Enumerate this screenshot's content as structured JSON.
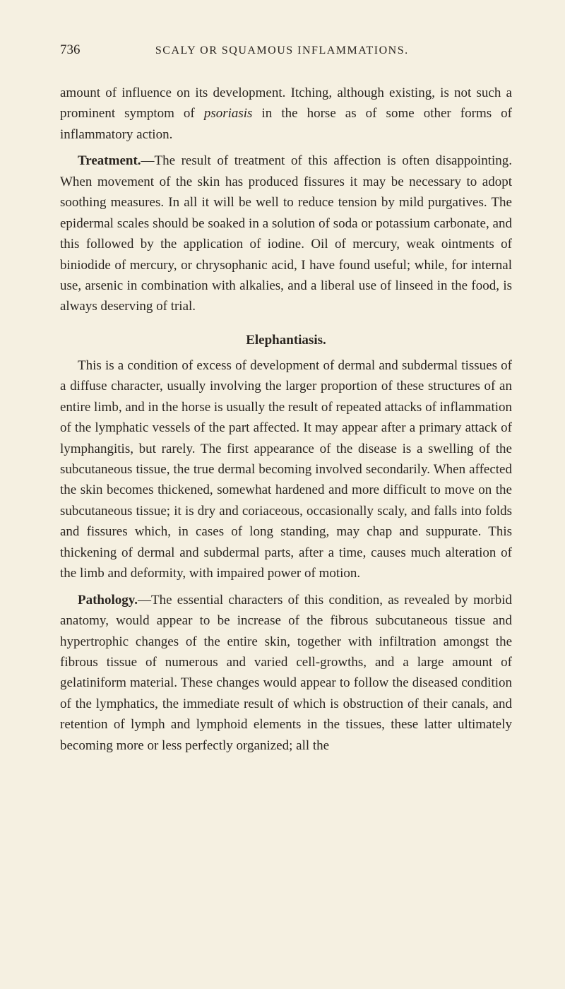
{
  "page_number": "736",
  "running_head": "SCALY OR SQUAMOUS INFLAMMATIONS.",
  "background_color": "#f5f0e1",
  "text_color": "#2a2520",
  "body_fontsize": 19,
  "line_height": 1.55,
  "paragraphs": {
    "p1_prefix": "amount of influence on its development. Itching, although existing, is not such a prominent symptom of ",
    "p1_italic": "psoriasis",
    "p1_suffix": " in the horse as of some other forms of inflammatory action.",
    "p2_lead": "Treatment.",
    "p2_body": "—The result of treatment of this affection is often disappointing. When movement of the skin has produced fissures it may be necessary to adopt soothing measures. In all it will be well to reduce tension by mild purgatives. The epidermal scales should be soaked in a solution of soda or potassium carbonate, and this followed by the application of iodine. Oil of mercury, weak ointments of biniodide of mercury, or chrysophanic acid, I have found useful; while, for internal use, arsenic in combination with alkalies, and a liberal use of linseed in the food, is always deserving of trial.",
    "heading": "Elephantiasis.",
    "p3": "This is a condition of excess of development of dermal and subdermal tissues of a diffuse character, usually involving the larger proportion of these structures of an entire limb, and in the horse is usually the result of repeated attacks of inflammation of the lymphatic vessels of the part affected. It may appear after a primary attack of lymphangitis, but rarely. The first appearance of the disease is a swelling of the subcutaneous tissue, the true dermal becoming involved secondarily. When affected the skin becomes thickened, somewhat hardened and more difficult to move on the subcutaneous tissue; it is dry and coriaceous, occasionally scaly, and falls into folds and fissures which, in cases of long standing, may chap and suppurate. This thickening of dermal and subdermal parts, after a time, causes much alteration of the limb and deformity, with impaired power of motion.",
    "p4_lead": "Pathology.",
    "p4_body": "—The essential characters of this condition, as revealed by morbid anatomy, would appear to be increase of the fibrous subcutaneous tissue and hypertrophic changes of the entire skin, together with infiltration amongst the fibrous tissue of numerous and varied cell-growths, and a large amount of gelatiniform material. These changes would appear to follow the diseased condition of the lymphatics, the immediate result of which is obstruction of their canals, and retention of lymph and lymphoid elements in the tissues, these latter ultimately becoming more or less perfectly organized; all the"
  }
}
